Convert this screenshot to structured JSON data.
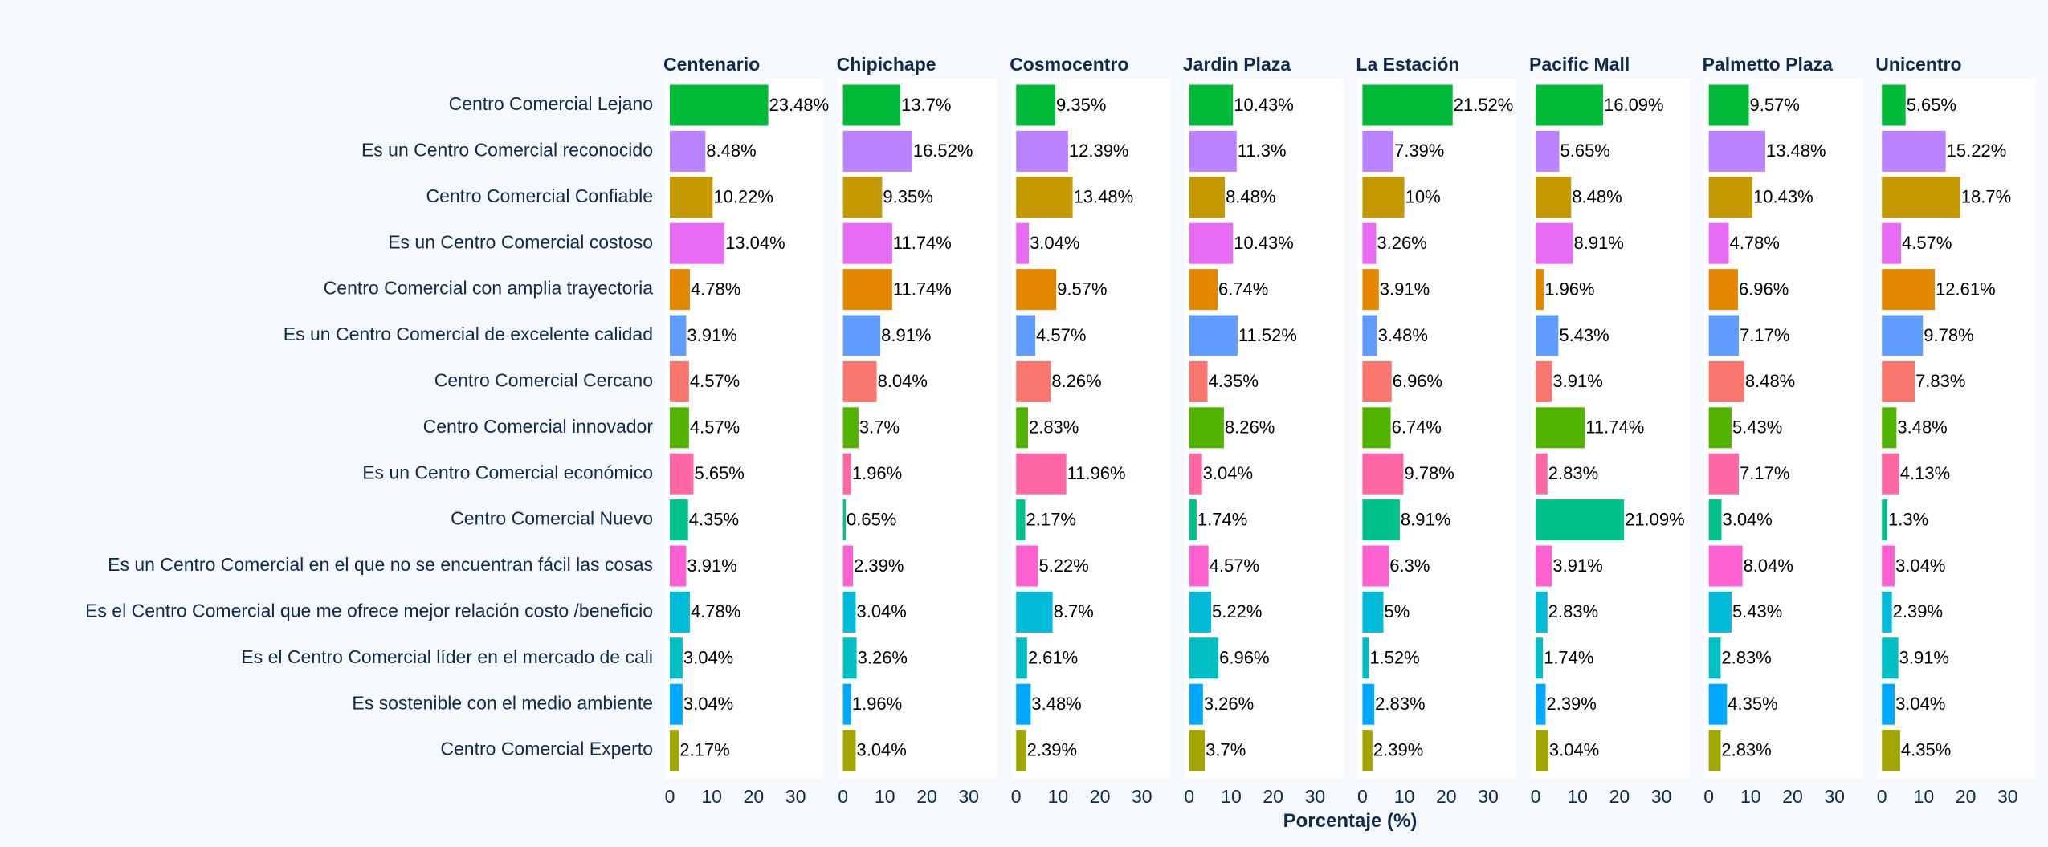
{
  "chart_data": {
    "type": "bar",
    "orientation": "horizontal",
    "xlabel": "Porcentaje (%)",
    "xlim": [
      0,
      37
    ],
    "xticks": [
      0,
      10,
      20,
      30
    ],
    "panels": [
      "Centenario",
      "Chipichape",
      "Cosmocentro",
      "Jardin Plaza",
      "La Estación",
      "Pacific Mall",
      "Palmetto Plaza",
      "Unicentro"
    ],
    "categories": [
      "Centro Comercial Lejano",
      "Es un Centro Comercial reconocido",
      "Centro Comercial Confiable",
      "Es un Centro Comercial costoso",
      "Centro Comercial con amplia trayectoria",
      "Es un Centro Comercial de excelente calidad",
      "Centro Comercial Cercano",
      "Centro Comercial innovador",
      "Es un Centro Comercial económico",
      "Centro Comercial Nuevo",
      "Es un Centro Comercial en el que no se encuentran fácil las cosas",
      "Es el Centro Comercial que me ofrece mejor relación costo /beneficio",
      "Es el Centro Comercial líder en el mercado de cali",
      "Es sostenible con el medio ambiente",
      "Centro Comercial Experto"
    ],
    "colors": [
      "#00ba38",
      "#b983ff",
      "#c49a00",
      "#e76bf3",
      "#e58700",
      "#619cff",
      "#f8766d",
      "#53b400",
      "#ff67a4",
      "#00c08b",
      "#fd61d1",
      "#00bcd8",
      "#00bfc4",
      "#00a9ff",
      "#a3a500"
    ],
    "values": [
      [
        23.48,
        8.48,
        10.22,
        13.04,
        4.78,
        3.91,
        4.57,
        4.57,
        5.65,
        4.35,
        3.91,
        4.78,
        3.04,
        3.04,
        2.17
      ],
      [
        13.7,
        16.52,
        9.35,
        11.74,
        11.74,
        8.91,
        8.04,
        3.7,
        1.96,
        0.65,
        2.39,
        3.04,
        3.26,
        1.96,
        3.04
      ],
      [
        9.35,
        12.39,
        13.48,
        3.04,
        9.57,
        4.57,
        8.26,
        2.83,
        11.96,
        2.17,
        5.22,
        8.7,
        2.61,
        3.48,
        2.39
      ],
      [
        10.43,
        11.3,
        8.48,
        10.43,
        6.74,
        11.52,
        4.35,
        8.26,
        3.04,
        1.74,
        4.57,
        5.22,
        6.96,
        3.26,
        3.7
      ],
      [
        21.52,
        7.39,
        10,
        3.26,
        3.91,
        3.48,
        6.96,
        6.74,
        9.78,
        8.91,
        6.3,
        5,
        1.52,
        2.83,
        2.39
      ],
      [
        16.09,
        5.65,
        8.48,
        8.91,
        1.96,
        5.43,
        3.91,
        11.74,
        2.83,
        21.09,
        3.91,
        2.83,
        1.74,
        2.39,
        3.04
      ],
      [
        9.57,
        13.48,
        10.43,
        4.78,
        6.96,
        7.17,
        8.48,
        5.43,
        7.17,
        3.04,
        8.04,
        5.43,
        2.83,
        4.35,
        2.83
      ],
      [
        5.65,
        15.22,
        18.7,
        4.57,
        12.61,
        9.78,
        7.83,
        3.48,
        4.13,
        1.3,
        3.04,
        2.39,
        3.91,
        3.04,
        4.35
      ]
    ],
    "value_labels": [
      [
        "23.48%",
        "8.48%",
        "10.22%",
        "13.04%",
        "4.78%",
        "3.91%",
        "4.57%",
        "4.57%",
        "5.65%",
        "4.35%",
        "3.91%",
        "4.78%",
        "3.04%",
        "3.04%",
        "2.17%"
      ],
      [
        "13.7%",
        "16.52%",
        "9.35%",
        "11.74%",
        "11.74%",
        "8.91%",
        "8.04%",
        "3.7%",
        "1.96%",
        "0.65%",
        "2.39%",
        "3.04%",
        "3.26%",
        "1.96%",
        "3.04%"
      ],
      [
        "9.35%",
        "12.39%",
        "13.48%",
        "3.04%",
        "9.57%",
        "4.57%",
        "8.26%",
        "2.83%",
        "11.96%",
        "2.17%",
        "5.22%",
        "8.7%",
        "2.61%",
        "3.48%",
        "2.39%"
      ],
      [
        "10.43%",
        "11.3%",
        "8.48%",
        "10.43%",
        "6.74%",
        "11.52%",
        "4.35%",
        "8.26%",
        "3.04%",
        "1.74%",
        "4.57%",
        "5.22%",
        "6.96%",
        "3.26%",
        "3.7%"
      ],
      [
        "21.52%",
        "7.39%",
        "10%",
        "3.26%",
        "3.91%",
        "3.48%",
        "6.96%",
        "6.74%",
        "9.78%",
        "8.91%",
        "6.3%",
        "5%",
        "1.52%",
        "2.83%",
        "2.39%"
      ],
      [
        "16.09%",
        "5.65%",
        "8.48%",
        "8.91%",
        "1.96%",
        "5.43%",
        "3.91%",
        "11.74%",
        "2.83%",
        "21.09%",
        "3.91%",
        "2.83%",
        "1.74%",
        "2.39%",
        "3.04%"
      ],
      [
        "9.57%",
        "13.48%",
        "10.43%",
        "4.78%",
        "6.96%",
        "7.17%",
        "8.48%",
        "5.43%",
        "7.17%",
        "3.04%",
        "8.04%",
        "5.43%",
        "2.83%",
        "4.35%",
        "2.83%"
      ],
      [
        "5.65%",
        "15.22%",
        "18.7%",
        "4.57%",
        "12.61%",
        "9.78%",
        "7.83%",
        "3.48%",
        "4.13%",
        "1.3%",
        "3.04%",
        "2.39%",
        "3.91%",
        "3.04%",
        "4.35%"
      ]
    ],
    "grid": false,
    "legend": "none",
    "panel_background": "#ffffff",
    "page_background": "#f5f8fc"
  }
}
